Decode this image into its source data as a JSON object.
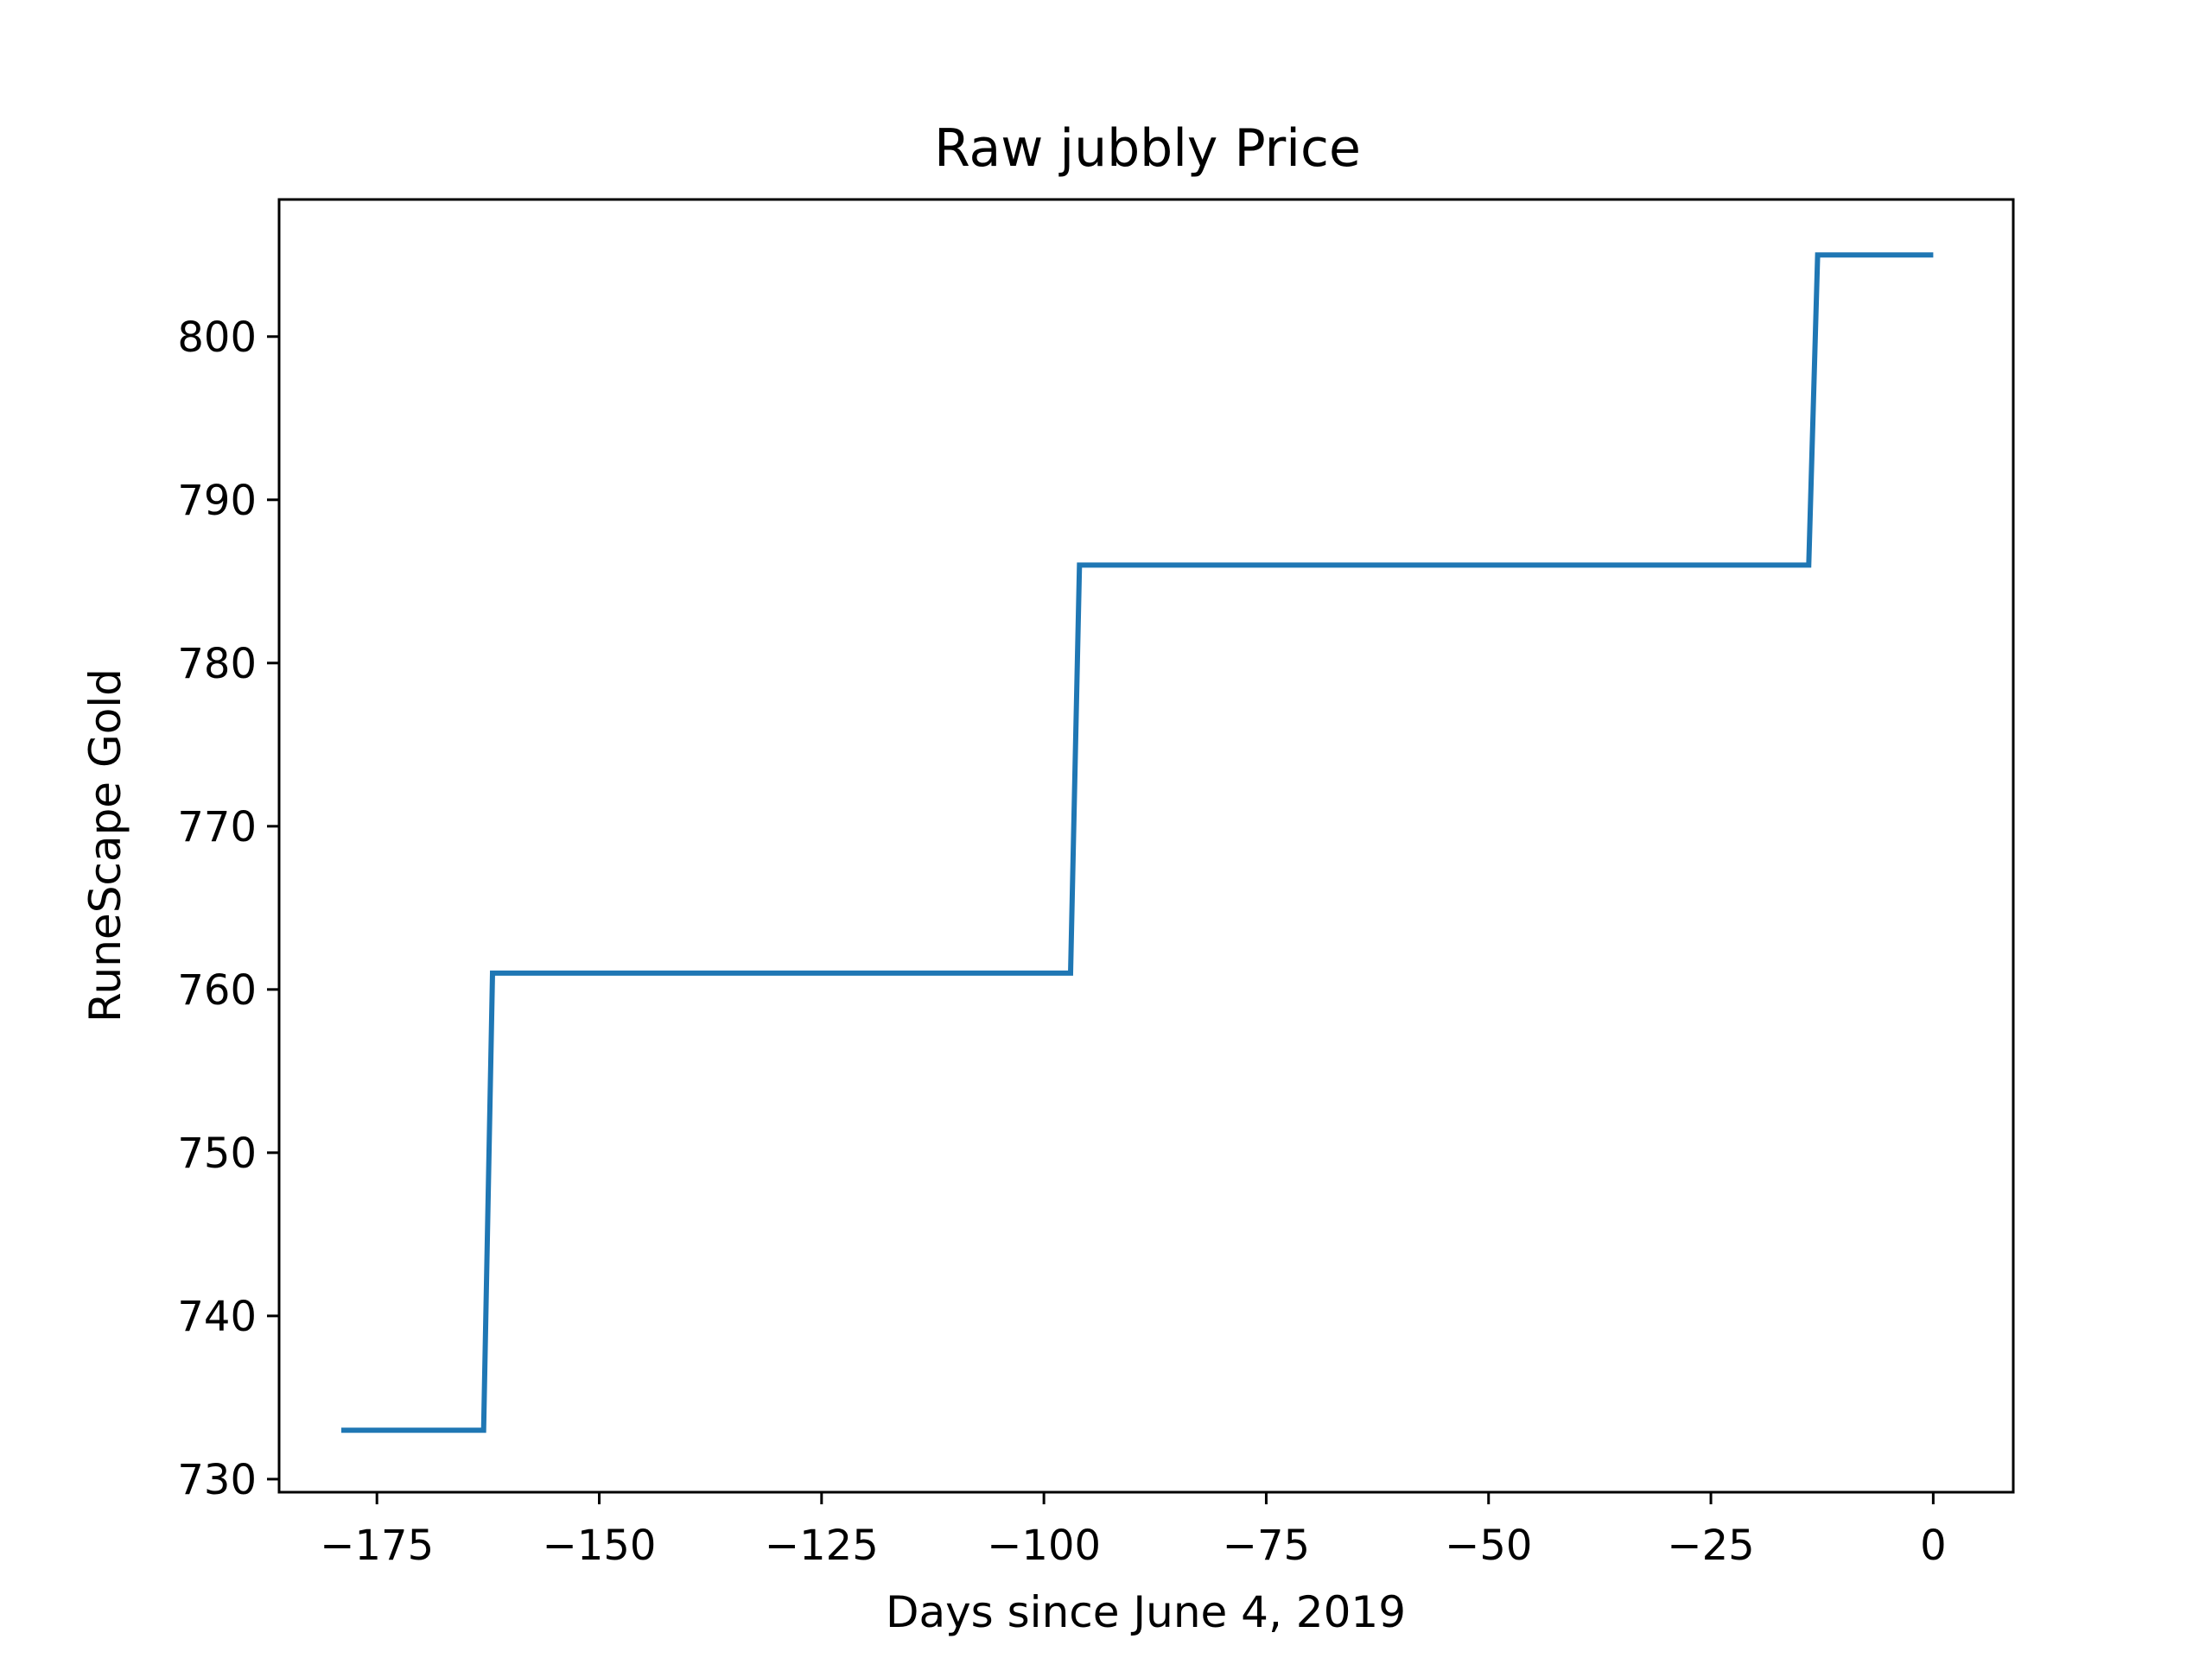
{
  "chart_data": {
    "type": "line",
    "title": "Raw jubbly Price",
    "xlabel": "Days since June 4, 2019",
    "ylabel": "RuneScape Gold",
    "xlim": [
      -186,
      9
    ],
    "ylim": [
      729.2,
      808.4
    ],
    "xticks": [
      -175,
      -150,
      -125,
      -100,
      -75,
      -50,
      -25,
      0
    ],
    "xtick_labels": [
      "−175",
      "−150",
      "−125",
      "−100",
      "−75",
      "−50",
      "−25",
      "0"
    ],
    "yticks": [
      730,
      740,
      750,
      760,
      770,
      780,
      790,
      800
    ],
    "ytick_labels": [
      "730",
      "740",
      "750",
      "760",
      "770",
      "780",
      "790",
      "800"
    ],
    "grid": false,
    "legend": "none",
    "series": [
      {
        "color": "#1f77b4",
        "x": [
          -179,
          -163,
          -162,
          -97,
          -96,
          -14,
          -13,
          0
        ],
        "y": [
          733,
          733,
          761,
          761,
          786,
          786,
          805,
          805
        ]
      }
    ]
  }
}
